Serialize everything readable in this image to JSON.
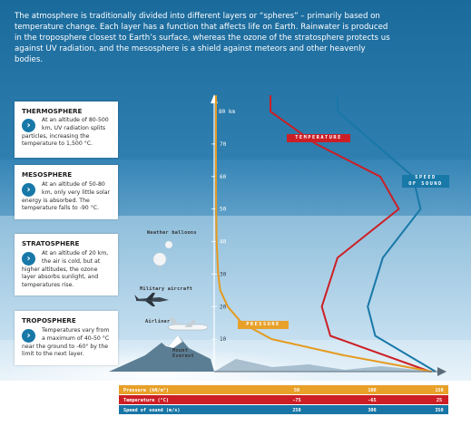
{
  "intro": "The atmosphere is traditionally divided into different layers or “spheres” – primarily based on temperature change. Each layer has a function that affects life on Earth. Rainwater is produced in the troposphere closest to Earth’s surface, whereas the ozone of the stratosphere protects us against UV radiation, and the mesosphere is a shield against meteors and other heavenly bodies.",
  "layers": [
    {
      "name": "THERMOSPHERE",
      "text": "At an altitude of 80-500 km, UV radiation splits particles, increasing the temperature to 1,500 °C."
    },
    {
      "name": "MESOSPHERE",
      "text": "At an altitude of 50-80 km, only very little solar energy is absorbed. The temperature falls to -90 °C."
    },
    {
      "name": "STRATOSPHERE",
      "text": "At an altitude of 20 km, the air is cold, but at higher altitudes, the ozone layer absorbs sunlight, and temperatures rise."
    },
    {
      "name": "TROPOSPHERE",
      "text": "Temperatures vary from a maximum of 40-50 °C near the ground to -60° by the limit to the next layer."
    }
  ],
  "icons": {
    "layer_bullet": "chevron-right-icon",
    "balloons": "weather-balloon-icon",
    "military": "military-aircraft-icon",
    "airliner": "airliner-icon",
    "mountain": "mountain-icon"
  },
  "figures": {
    "balloons": "Weather balloons",
    "military": "Military aircraft",
    "airliner": "Airliner",
    "mountain": "Mount\nEverest"
  },
  "tags": {
    "temperature": "TEMPERATURE",
    "speed": "SPEED\nOF SOUND",
    "pressure": "PRESSURE"
  },
  "credit": "",
  "colors": {
    "sky_top": "#1b6e9f",
    "sky_mid": "#5d9ec7",
    "sky_low": "#9ec8e2",
    "temperature": "#cc1f25",
    "speed": "#1878a8",
    "pressure": "#e59a1f",
    "bar_pressure": "#e8a028",
    "bar_temp": "#cc1f25",
    "bar_speed": "#1875a6"
  },
  "chart_data": {
    "type": "line",
    "y_axis": {
      "unit_label": "80 km",
      "ticks": [
        "70",
        "60",
        "50",
        "40",
        "30",
        "20",
        "10"
      ],
      "ticks_values": [
        70,
        60,
        50,
        40,
        30,
        20,
        10
      ],
      "ylim": [
        0,
        90
      ]
    },
    "series": [
      {
        "name": "TEMPERATURE",
        "x_axis": "Temperature (°C)",
        "points": [
          [
            20,
            0
          ],
          [
            -50,
            11
          ],
          [
            -56,
            20
          ],
          [
            -45,
            35
          ],
          [
            -2,
            50
          ],
          [
            -15,
            60
          ],
          [
            -60,
            70
          ],
          [
            -92,
            80
          ],
          [
            -92,
            85
          ]
        ]
      },
      {
        "name": "SPEED OF SOUND",
        "x_axis": "Speed of sound (m/s)",
        "points": [
          [
            340,
            0
          ],
          [
            300,
            11
          ],
          [
            295,
            20
          ],
          [
            305,
            35
          ],
          [
            330,
            50
          ],
          [
            325,
            60
          ],
          [
            300,
            70
          ],
          [
            275,
            80
          ],
          [
            275,
            85
          ]
        ]
      },
      {
        "name": "PRESSURE",
        "x_axis": "Pressure (kN/m²)",
        "points": [
          [
            101,
            0
          ],
          [
            60,
            5
          ],
          [
            26,
            10
          ],
          [
            12,
            15
          ],
          [
            5.5,
            20
          ],
          [
            2,
            25
          ],
          [
            1,
            30
          ],
          [
            0.3,
            40
          ],
          [
            0.1,
            50
          ],
          [
            0,
            60
          ],
          [
            0,
            85
          ]
        ]
      }
    ],
    "bottom_axes": [
      {
        "label": "Pressure (kN/m²)",
        "ticks": [
          "50",
          "100",
          "150"
        ],
        "tick_values": [
          50,
          100,
          150
        ]
      },
      {
        "label": "Temperature (°C)",
        "ticks": [
          "-75",
          "-65",
          "25"
        ],
        "tick_values": [
          -75,
          -65,
          25
        ]
      },
      {
        "label": "Speed of sound (m/s)",
        "ticks": [
          "250",
          "300",
          "350"
        ],
        "tick_values": [
          250,
          300,
          350
        ]
      }
    ]
  }
}
